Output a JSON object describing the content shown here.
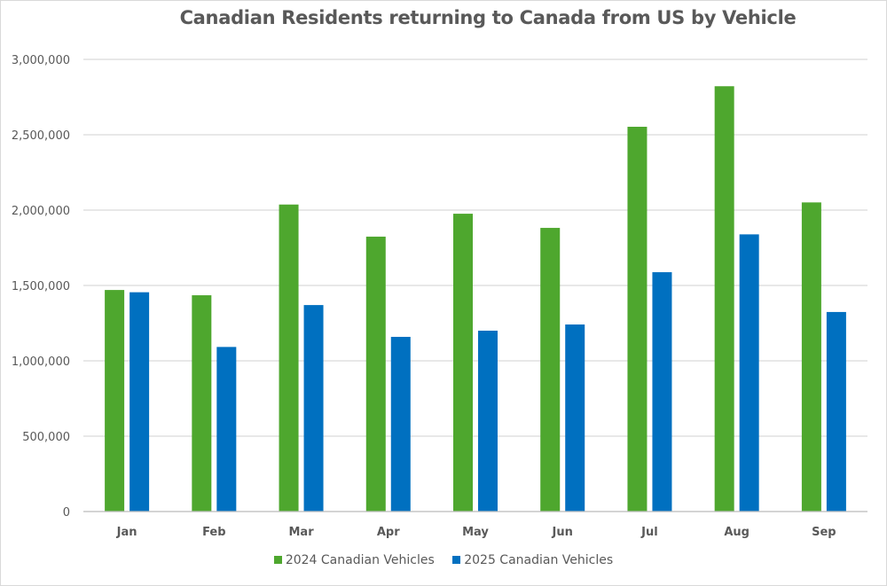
{
  "chart_data": {
    "type": "bar",
    "title": "Canadian Residents returning to Canada from US by Vehicle",
    "categories": [
      "Jan",
      "Feb",
      "Mar",
      "Apr",
      "May",
      "Jun",
      "Jul",
      "Aug",
      "Sep"
    ],
    "series": [
      {
        "name": "2024 Canadian Vehicles",
        "color": "#4EA72E",
        "values": [
          1470000,
          1435000,
          2037000,
          1824000,
          1976000,
          1882000,
          2553000,
          2822000,
          2051000
        ]
      },
      {
        "name": "2025 Canadian Vehicles",
        "color": "#0070C0",
        "values": [
          1455000,
          1092000,
          1370000,
          1159000,
          1200000,
          1241000,
          1588000,
          1839000,
          1324000
        ]
      }
    ],
    "ylim": [
      0,
      3000000
    ],
    "yticks": [
      "0",
      "500,000",
      "1,000,000",
      "1,500,000",
      "2,000,000",
      "2,500,000",
      "3,000,000"
    ],
    "ytick_values": [
      0,
      500000,
      1000000,
      1500000,
      2000000,
      2500000,
      3000000
    ],
    "grid": true,
    "legend": "bottom",
    "xlabel": "",
    "ylabel": ""
  }
}
